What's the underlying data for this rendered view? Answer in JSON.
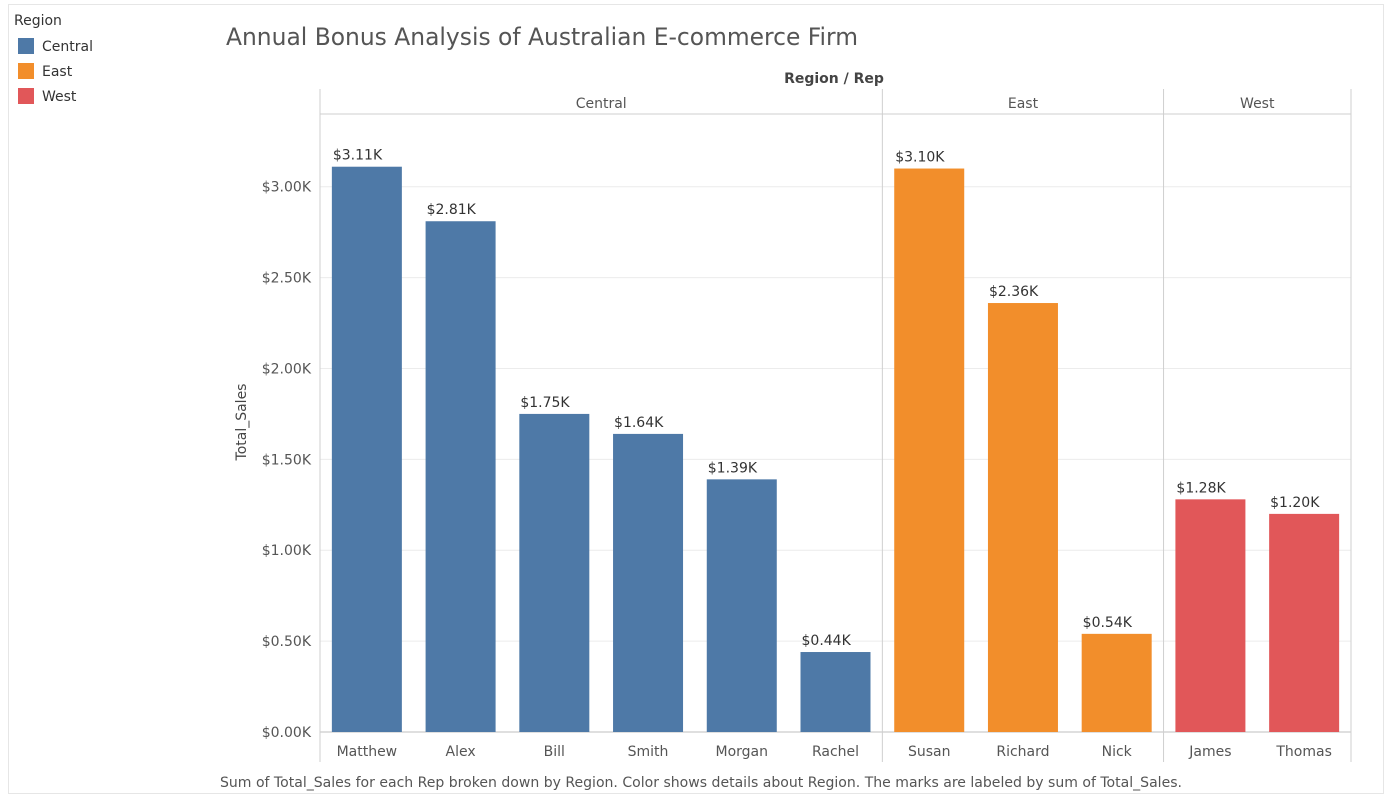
{
  "legend": {
    "title": "Region",
    "items": [
      {
        "label": "Central",
        "color": "#4e79a7"
      },
      {
        "label": "East",
        "color": "#f28e2b"
      },
      {
        "label": "West",
        "color": "#e15759"
      }
    ]
  },
  "caption": "Sum of Total_Sales for each Rep broken down by Region.  Color shows details about Region.  The marks are labeled by sum of Total_Sales.",
  "chart_data": {
    "type": "bar",
    "title": "Annual Bonus Analysis of Australian E-commerce Firm",
    "column_header": "Region / Rep",
    "ylabel": "Total_Sales",
    "ylim": [
      0,
      3400
    ],
    "yticks": [
      0,
      500,
      1000,
      1500,
      2000,
      2500,
      3000
    ],
    "ytick_labels": [
      "$0.00K",
      "$0.50K",
      "$1.00K",
      "$1.50K",
      "$2.00K",
      "$2.50K",
      "$3.00K"
    ],
    "gridlines": true,
    "legend_position": "top-left",
    "groups": [
      {
        "name": "Central",
        "color": "#4e79a7",
        "bars": [
          {
            "rep": "Matthew",
            "value": 3110,
            "label": "$3.11K"
          },
          {
            "rep": "Alex",
            "value": 2810,
            "label": "$2.81K"
          },
          {
            "rep": "Bill",
            "value": 1750,
            "label": "$1.75K"
          },
          {
            "rep": "Smith",
            "value": 1640,
            "label": "$1.64K"
          },
          {
            "rep": "Morgan",
            "value": 1390,
            "label": "$1.39K"
          },
          {
            "rep": "Rachel",
            "value": 440,
            "label": "$0.44K"
          }
        ]
      },
      {
        "name": "East",
        "color": "#f28e2b",
        "bars": [
          {
            "rep": "Susan",
            "value": 3100,
            "label": "$3.10K"
          },
          {
            "rep": "Richard",
            "value": 2360,
            "label": "$2.36K"
          },
          {
            "rep": "Nick",
            "value": 540,
            "label": "$0.54K"
          }
        ]
      },
      {
        "name": "West",
        "color": "#e15759",
        "bars": [
          {
            "rep": "James",
            "value": 1280,
            "label": "$1.28K"
          },
          {
            "rep": "Thomas",
            "value": 1200,
            "label": "$1.20K"
          }
        ]
      }
    ]
  }
}
